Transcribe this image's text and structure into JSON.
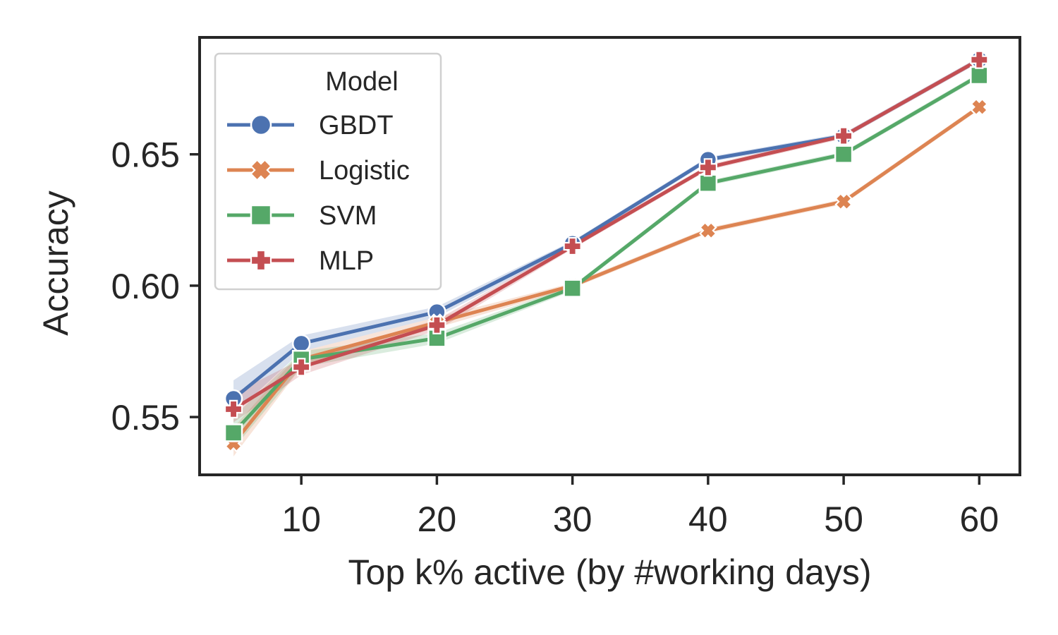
{
  "chart_data": {
    "type": "line",
    "title": "",
    "xlabel": "Top k% active (by #working days)",
    "ylabel": "Accuracy",
    "xlim": [
      2.5,
      63
    ],
    "ylim": [
      0.528,
      0.6945
    ],
    "x_ticks": [
      10,
      20,
      30,
      40,
      50,
      60
    ],
    "x_tick_labels": [
      "10",
      "20",
      "30",
      "40",
      "50",
      "60"
    ],
    "y_ticks": [
      0.55,
      0.6,
      0.65
    ],
    "y_tick_labels": [
      "0.55",
      "0.60",
      "0.65"
    ],
    "grid": false,
    "legend": {
      "title": "Model",
      "placement": "top-left"
    },
    "x": [
      5,
      10,
      20,
      30,
      40,
      50,
      60
    ],
    "series": [
      {
        "name": "GBDT",
        "color": "#4c72b0",
        "marker": "circle",
        "values": [
          0.557,
          0.578,
          0.59,
          0.616,
          0.648,
          0.657,
          0.686
        ],
        "ci_lower": [
          0.551,
          0.575,
          0.588,
          0.615,
          0.647,
          0.656,
          0.685
        ],
        "ci_upper": [
          0.564,
          0.581,
          0.592,
          0.617,
          0.649,
          0.658,
          0.687
        ]
      },
      {
        "name": "Logistic",
        "color": "#dd8452",
        "marker": "x",
        "values": [
          0.54,
          0.572,
          0.586,
          0.6,
          0.621,
          0.632,
          0.668
        ],
        "ci_lower": [
          0.535,
          0.569,
          0.584,
          0.599,
          0.62,
          0.631,
          0.667
        ],
        "ci_upper": [
          0.546,
          0.575,
          0.588,
          0.601,
          0.622,
          0.633,
          0.669
        ]
      },
      {
        "name": "SVM",
        "color": "#55a868",
        "marker": "square",
        "values": [
          0.544,
          0.572,
          0.58,
          0.599,
          0.639,
          0.65,
          0.68
        ],
        "ci_lower": [
          0.538,
          0.569,
          0.578,
          0.598,
          0.638,
          0.649,
          0.679
        ],
        "ci_upper": [
          0.55,
          0.575,
          0.582,
          0.6,
          0.64,
          0.651,
          0.681
        ]
      },
      {
        "name": "MLP",
        "color": "#c44e52",
        "marker": "plus",
        "values": [
          0.553,
          0.569,
          0.585,
          0.615,
          0.645,
          0.657,
          0.686
        ],
        "ci_lower": [
          0.548,
          0.566,
          0.583,
          0.614,
          0.644,
          0.656,
          0.685
        ],
        "ci_upper": [
          0.559,
          0.572,
          0.587,
          0.616,
          0.646,
          0.658,
          0.687
        ]
      }
    ]
  }
}
